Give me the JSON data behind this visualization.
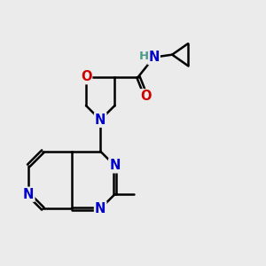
{
  "background_color": "#ebebeb",
  "bond_color": "#000000",
  "bond_width": 1.8,
  "atom_colors": {
    "N": "#0000cc",
    "O": "#cc0000",
    "H": "#4a9a8a",
    "C": "#000000"
  },
  "font_size_atom": 10.5
}
